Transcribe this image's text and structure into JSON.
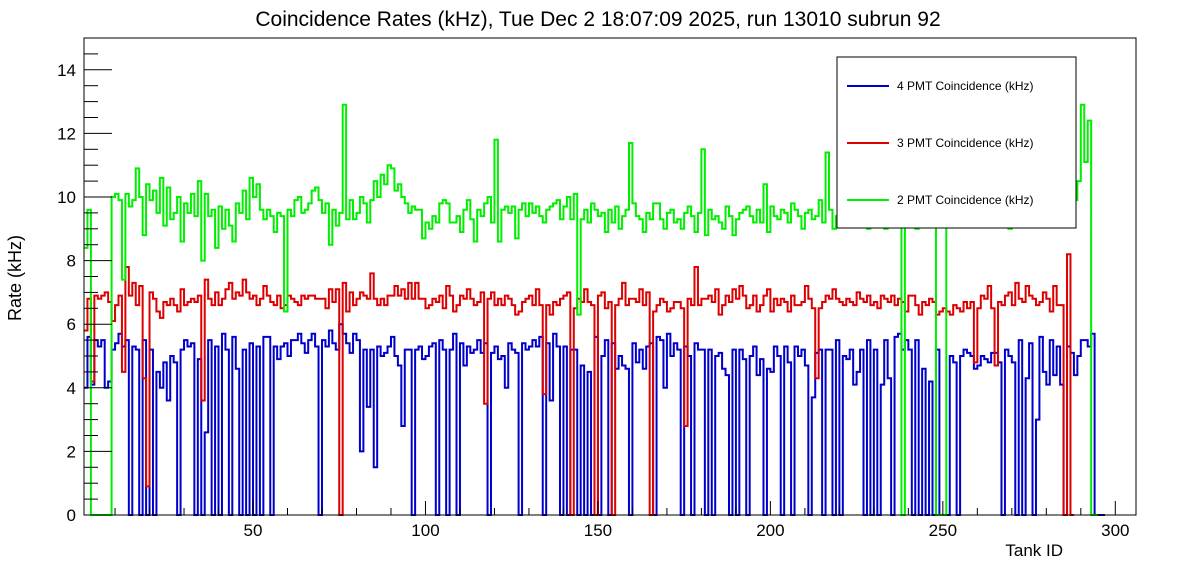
{
  "chart_data": {
    "type": "line",
    "title": "Coincidence Rates (kHz), Tue Dec  2 18:07:09 2025, run 13010 subrun 92",
    "xlabel": "Tank ID",
    "ylabel": "Rate (kHz)",
    "xlim": [
      1,
      306
    ],
    "ylim": [
      0,
      15
    ],
    "xticks": [
      50,
      100,
      150,
      200,
      250,
      300
    ],
    "yticks": [
      0,
      2,
      4,
      6,
      8,
      10,
      12,
      14
    ],
    "grid": false,
    "legend_position": "top-right",
    "series": [
      {
        "name": "4 PMT Coincidence (kHz)",
        "color": "#0000cc",
        "values": [
          4.0,
          5.6,
          4.1,
          5.5,
          5.3,
          5.5,
          4.0,
          4.2,
          5.2,
          5.4,
          5.7,
          5.3,
          5.5,
          0.0,
          5.3,
          5.2,
          0.0,
          5.5,
          0.0,
          5.2,
          0.0,
          4.5,
          4.0,
          4.8,
          3.6,
          5.0,
          4.8,
          0.0,
          5.2,
          5.5,
          5.3,
          5.4,
          0.0,
          4.9,
          0.0,
          2.6,
          5.5,
          0.0,
          5.3,
          0.0,
          5.7,
          5.2,
          0.0,
          5.6,
          4.6,
          0.0,
          5.2,
          0.0,
          5.4,
          0.0,
          5.3,
          0.0,
          5.6,
          5.6,
          0.0,
          5.3,
          4.9,
          5.3,
          5.4,
          5.0,
          5.5,
          5.5,
          5.7,
          5.4,
          5.1,
          5.5,
          5.7,
          5.3,
          0.0,
          5.5,
          5.3,
          5.8,
          5.4,
          5.2,
          6.0,
          5.7,
          5.4,
          5.1,
          5.7,
          5.5,
          2.0,
          5.2,
          3.4,
          5.2,
          1.5,
          5.3,
          5.0,
          5.1,
          5.3,
          5.6,
          5.0,
          4.7,
          2.8,
          5.2,
          5.2,
          0.0,
          5.2,
          5.3,
          4.9,
          5.0,
          5.3,
          5.4,
          0.0,
          5.5,
          5.2,
          0.0,
          5.2,
          5.7,
          0.0,
          5.4,
          4.7,
          5.3,
          5.1,
          5.2,
          5.5,
          5.1,
          5.4,
          0.0,
          5.1,
          5.3,
          4.9,
          5.0,
          4.0,
          5.4,
          5.2,
          5.1,
          0.0,
          5.4,
          5.2,
          5.3,
          5.5,
          5.3,
          5.6,
          0.0,
          5.4,
          3.6,
          5.7,
          5.3,
          0.0,
          5.3,
          0.0,
          5.2,
          5.2,
          0.0,
          4.7,
          0.0,
          4.5,
          0.0,
          5.6,
          0.0,
          5.0,
          5.5,
          0.0,
          5.4,
          4.6,
          5.0,
          4.7,
          4.6,
          0.0,
          5.4,
          4.8,
          5.2,
          4.6,
          5.3,
          5.4,
          0.0,
          5.6,
          5.5,
          4.0,
          5.7,
          5.0,
          5.4,
          5.2,
          0.0,
          5.3,
          5.0,
          0.0,
          5.4,
          5.2,
          5.2,
          0.0,
          5.2,
          0.0,
          5.0,
          5.1,
          4.6,
          4.4,
          0.0,
          5.2,
          0.0,
          5.2,
          4.9,
          0.0,
          5.0,
          5.3,
          4.4,
          4.9,
          0.0,
          4.6,
          4.5,
          5.3,
          5.0,
          0.0,
          5.3,
          4.8,
          0.0,
          5.3,
          5.0,
          5.2,
          4.7,
          0.0,
          3.7,
          5.1,
          5.2,
          0.0,
          5.2,
          5.2,
          0.0,
          5.5,
          0.0,
          5.0,
          4.9,
          5.2,
          4.1,
          4.5,
          5.2,
          0.0,
          5.5,
          0.0,
          5.2,
          0.0,
          4.1,
          5.5,
          4.3,
          0.0,
          5.6,
          5.7,
          5.2,
          5.5,
          5.2,
          0.0,
          5.5,
          0.0,
          4.6,
          0.0,
          4.2,
          0.0,
          5.2,
          0.0,
          0.0,
          0.0,
          5.0,
          4.8,
          0.0,
          5.0,
          5.2,
          5.1,
          5.0,
          4.6,
          4.7,
          5.0,
          4.9,
          4.8,
          5.1,
          5.1,
          4.8,
          0.0,
          5.2,
          5.0,
          4.8,
          0.0,
          5.5,
          0.0,
          4.3,
          5.4,
          0.0,
          3.0,
          5.6,
          4.5,
          4.1,
          5.5,
          4.4,
          5.3,
          4.1,
          0.0,
          5.3,
          5.1,
          4.4,
          5.0,
          5.5,
          5.5,
          5.3,
          5.7,
          0.0,
          0.0,
          0.0
        ]
      },
      {
        "name": "3 PMT Coincidence (kHz)",
        "color": "#dd0000",
        "values": [
          5.8,
          6.8,
          4.2,
          6.9,
          6.8,
          6.9,
          7.0,
          6.7,
          6.1,
          6.6,
          6.9,
          4.5,
          7.8,
          6.9,
          7.3,
          6.6,
          7.2,
          4.3,
          0.9,
          7.0,
          6.8,
          6.4,
          6.2,
          6.7,
          6.6,
          6.8,
          6.6,
          6.4,
          7.1,
          6.6,
          6.7,
          6.8,
          6.7,
          6.9,
          3.6,
          7.4,
          6.8,
          6.6,
          7.0,
          6.6,
          6.8,
          7.1,
          7.3,
          6.8,
          7.0,
          6.9,
          7.4,
          7.0,
          6.8,
          6.9,
          6.6,
          6.8,
          7.2,
          6.9,
          6.7,
          6.6,
          6.9,
          6.5,
          6.6,
          6.9,
          6.8,
          6.7,
          6.6,
          6.9,
          6.8,
          6.9,
          6.9,
          6.8,
          6.8,
          6.8,
          6.5,
          7.1,
          6.7,
          7.1,
          0.0,
          7.3,
          6.4,
          7.0,
          6.6,
          6.8,
          7.0,
          6.9,
          6.8,
          7.6,
          6.8,
          6.6,
          6.8,
          6.6,
          6.9,
          6.9,
          7.2,
          6.9,
          7.1,
          6.8,
          7.3,
          6.8,
          7.3,
          6.8,
          6.8,
          6.5,
          6.6,
          6.8,
          6.7,
          6.9,
          6.5,
          7.2,
          6.9,
          6.4,
          6.6,
          6.9,
          6.8,
          7.1,
          6.8,
          6.6,
          6.7,
          7.0,
          3.5,
          6.8,
          7.0,
          6.6,
          6.8,
          6.6,
          6.9,
          6.8,
          6.6,
          6.3,
          6.4,
          6.7,
          6.8,
          6.9,
          6.6,
          7.1,
          6.6,
          3.8,
          6.6,
          6.3,
          6.7,
          6.6,
          6.8,
          6.9,
          7.0,
          0.0,
          6.5,
          6.8,
          6.7,
          7.1,
          6.7,
          6.6,
          0.0,
          6.9,
          7.0,
          6.5,
          6.7,
          0.0,
          6.6,
          6.8,
          7.3,
          6.6,
          6.8,
          6.8,
          6.7,
          7.1,
          6.6,
          7.0,
          0.0,
          6.4,
          6.6,
          6.8,
          6.7,
          6.4,
          6.5,
          6.7,
          6.7,
          6.5,
          2.8,
          6.8,
          6.6,
          7.8,
          6.6,
          6.8,
          6.8,
          6.9,
          6.7,
          7.1,
          6.3,
          6.6,
          6.9,
          6.7,
          7.1,
          6.8,
          7.2,
          6.9,
          6.5,
          6.6,
          6.9,
          6.4,
          6.6,
          6.9,
          7.1,
          6.4,
          6.8,
          6.6,
          6.8,
          6.7,
          6.4,
          6.9,
          6.6,
          6.6,
          6.7,
          7.2,
          6.8,
          6.5,
          4.3,
          6.5,
          6.7,
          6.9,
          6.8,
          7.1,
          6.8,
          6.7,
          6.6,
          6.8,
          6.7,
          6.6,
          7.0,
          6.8,
          6.7,
          6.9,
          6.6,
          6.7,
          6.5,
          6.9,
          6.8,
          6.7,
          6.9,
          6.6,
          6.8,
          6.7,
          6.4,
          6.9,
          6.9,
          6.6,
          6.3,
          6.7,
          6.6,
          6.8,
          6.7,
          6.3,
          6.4,
          6.5,
          6.4,
          6.3,
          6.6,
          6.5,
          6.4,
          6.7,
          6.5,
          6.7,
          4.8,
          6.5,
          6.9,
          6.8,
          7.2,
          6.5,
          4.7,
          6.7,
          6.6,
          6.9,
          7.0,
          6.6,
          7.3,
          6.8,
          6.7,
          7.2,
          6.9,
          6.8,
          6.6,
          6.7,
          7.0,
          6.8,
          6.4,
          7.2,
          6.6,
          6.6,
          0.0,
          8.2,
          0.0
        ]
      },
      {
        "name": "2 PMT Coincidence (kHz)",
        "color": "#00ee00",
        "values": [
          8.4,
          9.6,
          0.0,
          0.0,
          0.0,
          0.0,
          0.0,
          0.0,
          10.0,
          10.1,
          9.9,
          7.4,
          10.1,
          9.7,
          9.9,
          10.9,
          10.0,
          8.8,
          10.4,
          9.9,
          10.2,
          9.5,
          10.6,
          9.1,
          10.3,
          9.3,
          9.5,
          10.0,
          8.6,
          9.8,
          9.5,
          10.1,
          9.4,
          10.5,
          8.0,
          10.1,
          9.4,
          9.6,
          8.4,
          9.7,
          9.0,
          9.6,
          9.1,
          8.6,
          9.8,
          9.5,
          10.2,
          9.3,
          10.6,
          10.0,
          10.4,
          9.6,
          9.3,
          9.6,
          9.4,
          8.9,
          9.5,
          9.4,
          6.4,
          9.6,
          9.4,
          9.9,
          10.0,
          9.5,
          9.6,
          9.8,
          10.2,
          10.3,
          9.9,
          9.5,
          9.8,
          8.5,
          9.6,
          9.1,
          9.5,
          12.9,
          9.3,
          9.9,
          9.3,
          9.5,
          10.0,
          9.8,
          9.2,
          9.9,
          10.5,
          10.0,
          10.7,
          10.4,
          11.0,
          10.9,
          10.2,
          10.4,
          10.0,
          9.8,
          9.5,
          9.7,
          9.6,
          9.6,
          8.7,
          9.2,
          9.0,
          9.4,
          9.2,
          9.8,
          9.9,
          9.8,
          9.2,
          9.2,
          9.4,
          8.9,
          9.6,
          9.9,
          9.3,
          8.6,
          9.6,
          9.4,
          9.8,
          10.0,
          9.2,
          11.8,
          8.6,
          9.6,
          9.7,
          9.5,
          9.7,
          8.7,
          9.6,
          9.8,
          9.4,
          9.8,
          9.5,
          9.7,
          9.4,
          9.2,
          9.6,
          9.7,
          9.8,
          9.9,
          9.3,
          9.7,
          10.0,
          9.3,
          10.1,
          6.3,
          9.3,
          9.6,
          9.2,
          9.8,
          9.6,
          9.4,
          9.5,
          8.9,
          9.6,
          9.2,
          9.7,
          9.0,
          9.4,
          9.6,
          11.7,
          9.8,
          9.4,
          9.3,
          8.9,
          9.5,
          9.3,
          9.8,
          9.8,
          9.3,
          9.0,
          9.5,
          9.6,
          9.2,
          9.3,
          9.0,
          9.5,
          9.7,
          9.4,
          8.9,
          9.5,
          11.5,
          8.8,
          9.6,
          9.3,
          9.4,
          9.2,
          9.0,
          9.7,
          9.4,
          8.8,
          9.3,
          9.5,
          9.6,
          9.7,
          9.4,
          9.2,
          9.6,
          9.2,
          10.4,
          8.9,
          9.7,
          9.4,
          9.3,
          9.6,
          9.5,
          9.2,
          9.8,
          9.6,
          9.4,
          9.0,
          9.5,
          9.6,
          9.3,
          9.4,
          9.9,
          9.2,
          11.4,
          9.6,
          9.0,
          9.4,
          9.5,
          9.7,
          9.2,
          9.4,
          9.6,
          9.1,
          9.5,
          9.3,
          9.0,
          9.3,
          9.4,
          9.5,
          9.7,
          9.0,
          9.3,
          9.5,
          9.3,
          9.6,
          0.0,
          9.6,
          9.3,
          9.5,
          9.0,
          9.5,
          9.7,
          9.1,
          9.4,
          9.5,
          0.0,
          0.0,
          0.0,
          9.4,
          9.2,
          9.5,
          9.6,
          9.2,
          9.3,
          9.5,
          9.6,
          9.3,
          9.1,
          9.4,
          9.7,
          9.2,
          9.5,
          9.6,
          9.4,
          9.3,
          9.5,
          9.0,
          9.6,
          9.4,
          9.7,
          9.3,
          9.1,
          9.5,
          9.6,
          9.2,
          9.4,
          9.5,
          9.7,
          9.2,
          9.4,
          9.6,
          9.3,
          9.5,
          9.2,
          9.4,
          9.9,
          10.5,
          12.9,
          11.1,
          12.4,
          0.0,
          0.0
        ]
      }
    ]
  }
}
